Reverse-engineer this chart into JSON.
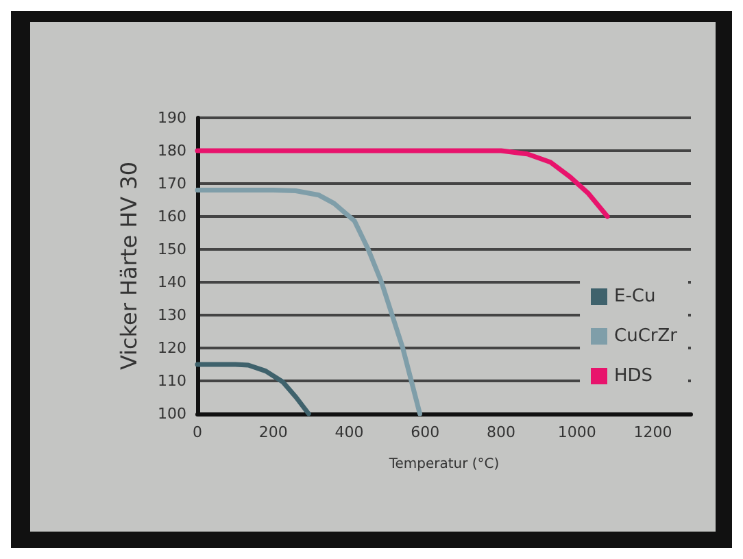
{
  "chart_data": {
    "type": "line",
    "xlabel": "Temperatur (°C)",
    "ylabel": "Vicker Härte HV 30",
    "xlim": [
      0,
      1300
    ],
    "xticks": [
      0,
      200,
      400,
      600,
      800,
      1000,
      1200
    ],
    "ylim": [
      100,
      190
    ],
    "yticks": [
      100,
      110,
      120,
      130,
      140,
      150,
      160,
      170,
      180,
      190
    ],
    "grid": "y",
    "legend": "right",
    "marker": "none",
    "line_style": "solid",
    "series": [
      {
        "name": "E-Cu",
        "color": "#3f626c",
        "x": [
          0,
          100,
          134,
          180,
          225,
          260,
          293
        ],
        "values": [
          115,
          115,
          114.8,
          113,
          109.7,
          105,
          100
        ]
      },
      {
        "name": "CuCrZr",
        "color": "#7f9ea9",
        "x": [
          0,
          200,
          259,
          320,
          360,
          414,
          450,
          485,
          541,
          586
        ],
        "values": [
          168,
          168,
          167.8,
          166.5,
          164,
          158.6,
          150,
          140,
          120,
          100
        ]
      },
      {
        "name": "HDS",
        "color": "#e8136c",
        "x": [
          0,
          400,
          800,
          869,
          930,
          982,
          1030,
          1080
        ],
        "values": [
          180,
          180,
          180,
          179,
          176.5,
          172,
          167,
          160
        ]
      }
    ]
  }
}
